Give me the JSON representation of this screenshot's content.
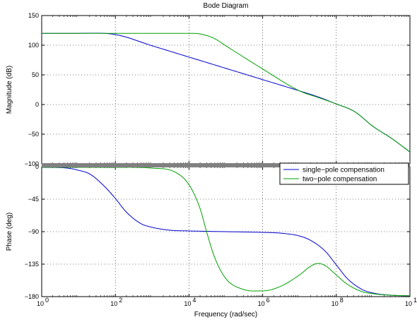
{
  "chart_data": {
    "type": "line",
    "title": "Bode Diagram",
    "xlabel": "Frequency  (rad/sec)",
    "x_scale": "log",
    "xlim": [
      1,
      10000000000
    ],
    "x_ticks": [
      {
        "value": 1,
        "base": "10",
        "exp": "0"
      },
      {
        "value": 100,
        "base": "10",
        "exp": "2"
      },
      {
        "value": 10000,
        "base": "10",
        "exp": "4"
      },
      {
        "value": 1000000,
        "base": "10",
        "exp": "6"
      },
      {
        "value": 100000000,
        "base": "10",
        "exp": "8"
      },
      {
        "value": 10000000000,
        "base": "10",
        "exp": "10"
      }
    ],
    "grid": true,
    "legend_position": "top-right of phase plot",
    "series": [
      {
        "name": "single−pole compensation",
        "color": "#0000cc"
      },
      {
        "name": "two−pole compensation",
        "color": "#00a000"
      }
    ],
    "panels": [
      {
        "ylabel": "Magnitude (dB)",
        "ylim": [
          -100,
          150
        ],
        "y_ticks": [
          {
            "value": 150,
            "label": "150"
          },
          {
            "value": 100,
            "label": "100"
          },
          {
            "value": 50,
            "label": "50"
          },
          {
            "value": 0,
            "label": "0"
          },
          {
            "value": -50,
            "label": "−50"
          },
          {
            "value": -100,
            "label": "−100"
          }
        ],
        "series_points": [
          [
            [
              1,
              120
            ],
            [
              10,
              120
            ],
            [
              100,
              118
            ],
            [
              1000,
              99
            ],
            [
              10000,
              80
            ],
            [
              100000,
              61
            ],
            [
              1000000,
              42
            ],
            [
              10000000,
              23
            ],
            [
              31600000,
              13
            ],
            [
              100000000,
              1
            ],
            [
              316000000,
              -12
            ],
            [
              1000000000,
              -37
            ],
            [
              3160000000,
              -57
            ],
            [
              10000000000,
              -80
            ]
          ],
          [
            [
              1,
              120
            ],
            [
              10,
              120
            ],
            [
              1000,
              120
            ],
            [
              10000,
              120
            ],
            [
              20000,
              119
            ],
            [
              50000,
              111
            ],
            [
              100000,
              99
            ],
            [
              1000000,
              60
            ],
            [
              10000000,
              23
            ],
            [
              31600000,
              12
            ],
            [
              100000000,
              1
            ],
            [
              316000000,
              -12
            ],
            [
              1000000000,
              -37
            ],
            [
              3160000000,
              -57
            ],
            [
              10000000000,
              -80
            ]
          ]
        ]
      },
      {
        "ylabel": "Phase (deg)",
        "ylim": [
          -180,
          0
        ],
        "y_ticks": [
          {
            "value": 0,
            "label": "0"
          },
          {
            "value": -45,
            "label": "−45"
          },
          {
            "value": -90,
            "label": "−90"
          },
          {
            "value": -135,
            "label": "−135"
          },
          {
            "value": -180,
            "label": "−180"
          }
        ],
        "series_points": [
          [
            [
              1,
              -1
            ],
            [
              5,
              -2
            ],
            [
              10,
              -5
            ],
            [
              20,
              -10
            ],
            [
              50,
              -27
            ],
            [
              100,
              -44
            ],
            [
              200,
              -63
            ],
            [
              500,
              -79
            ],
            [
              1000,
              -84
            ],
            [
              3000,
              -88
            ],
            [
              10000,
              -89
            ],
            [
              100000,
              -90
            ],
            [
              1000000,
              -91
            ],
            [
              3000000,
              -92
            ],
            [
              10000000,
              -96
            ],
            [
              20000000,
              -102
            ],
            [
              50000000,
              -117
            ],
            [
              100000000,
              -136
            ],
            [
              200000000,
              -155
            ],
            [
              500000000,
              -170
            ],
            [
              1000000000,
              -175
            ],
            [
              3000000000,
              -178
            ],
            [
              10000000000,
              -179
            ]
          ],
          [
            [
              1,
              -1
            ],
            [
              100,
              -1
            ],
            [
              1000,
              -2
            ],
            [
              4000,
              -7
            ],
            [
              10000,
              -25
            ],
            [
              20000,
              -58
            ],
            [
              30000,
              -90
            ],
            [
              50000,
              -126
            ],
            [
              100000,
              -155
            ],
            [
              300000,
              -170
            ],
            [
              1000000,
              -172
            ],
            [
              3000000,
              -166
            ],
            [
              10000000,
              -150
            ],
            [
              20000000,
              -138
            ],
            [
              31600000,
              -134
            ],
            [
              50000000,
              -137
            ],
            [
              100000000,
              -150
            ],
            [
              200000000,
              -163
            ],
            [
              500000000,
              -173
            ],
            [
              1000000000,
              -176
            ],
            [
              3000000000,
              -178
            ],
            [
              10000000000,
              -179
            ]
          ]
        ]
      }
    ]
  }
}
